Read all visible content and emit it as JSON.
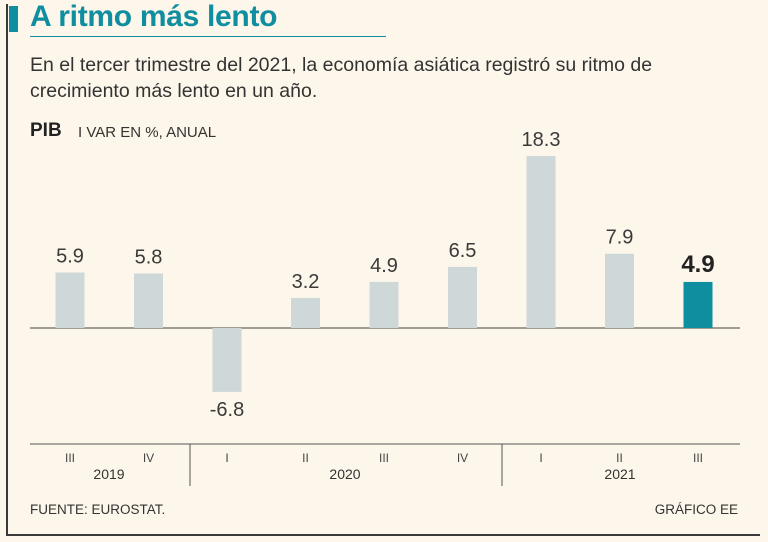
{
  "header": {
    "title": "A ritmo más lento",
    "subtitle": "En el tercer trimestre del 2021, la economía asiática registró su ritmo de crecimiento más lento en un año.",
    "metric_label": "PIB",
    "metric_sub": "I VAR EN %, ANUAL"
  },
  "footer": {
    "source": "FUENTE: EUROSTAT.",
    "credit": "GRÁFICO EE"
  },
  "colors": {
    "bar": "#cfd8d9",
    "highlight": "#0f8ea0",
    "accent": "#0f8ea0"
  },
  "chart_data": {
    "type": "bar",
    "title": "A ritmo más lento",
    "ylabel": "VAR EN %, ANUAL",
    "categories": [
      "III",
      "IV",
      "I",
      "II",
      "III",
      "IV",
      "I",
      "II",
      "III"
    ],
    "years": [
      {
        "label": "2019",
        "span": [
          0,
          1
        ]
      },
      {
        "label": "2020",
        "span": [
          2,
          5
        ]
      },
      {
        "label": "2021",
        "span": [
          6,
          8
        ]
      }
    ],
    "values": [
      5.9,
      5.8,
      -6.8,
      3.2,
      4.9,
      6.5,
      18.3,
      7.9,
      4.9
    ],
    "value_labels": [
      "5.9",
      "5.8",
      "-6.8",
      "3.2",
      "4.9",
      "6.5",
      "18.3",
      "7.9",
      "4.9"
    ],
    "highlight_index": 8,
    "ylim": [
      -6.8,
      18.3
    ]
  }
}
